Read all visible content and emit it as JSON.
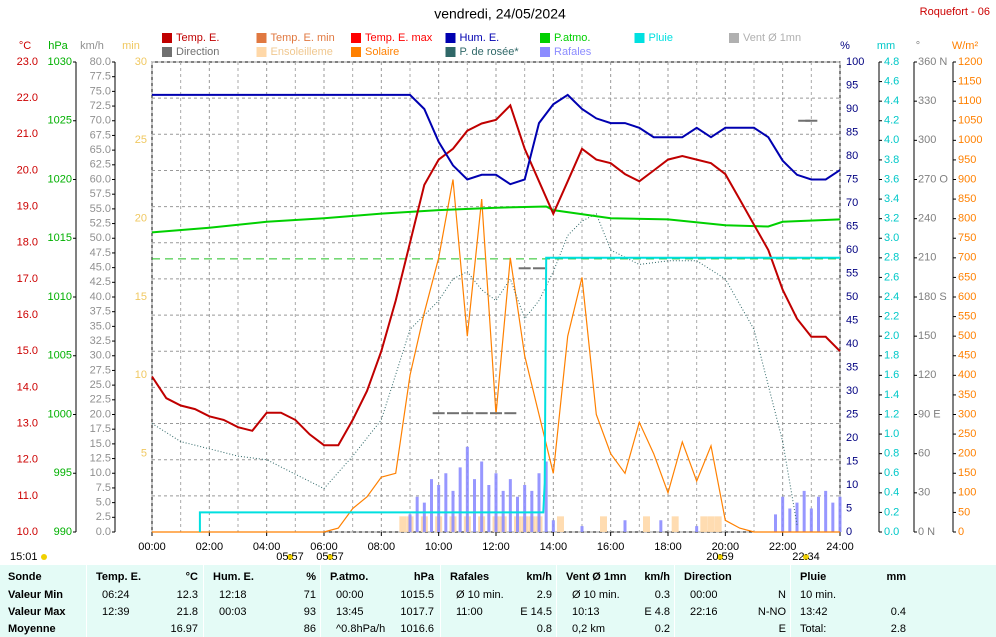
{
  "chart_data": {
    "type": "line",
    "title": "vendredi, 24/05/2024",
    "station": "Roquefort - 06",
    "xlim": [
      0,
      24
    ],
    "xticks": [
      {
        "value": 0,
        "label": "00:00"
      },
      {
        "value": 2,
        "label": "02:00"
      },
      {
        "value": 4,
        "label": "04:00"
      },
      {
        "value": 6,
        "label": "06:00"
      },
      {
        "value": 8,
        "label": "08:00"
      },
      {
        "value": 10,
        "label": "10:00"
      },
      {
        "value": 12,
        "label": "12:00"
      },
      {
        "value": 14,
        "label": "14:00"
      },
      {
        "value": 16,
        "label": "16:00"
      },
      {
        "value": 18,
        "label": "18:00"
      },
      {
        "value": 20,
        "label": "20:00"
      },
      {
        "value": 22,
        "label": "22:00"
      },
      {
        "value": 24,
        "label": "24:00"
      }
    ],
    "xminor": [
      1,
      3,
      5,
      7,
      9,
      11,
      13,
      15,
      17,
      19,
      21,
      23
    ],
    "grid": true,
    "pressure_reference": 1013.25,
    "legend": [
      {
        "name": "Temp. E.",
        "color": "#c00000"
      },
      {
        "name": "Temp. E. min",
        "color": "#e07840"
      },
      {
        "name": "Temp. E. max",
        "color": "#ff0000"
      },
      {
        "name": "Hum. E.",
        "color": "#0000b0"
      },
      {
        "name": "P.atmo.",
        "color": "#00d000"
      },
      {
        "name": "Pluie",
        "color": "#00e0e0"
      },
      {
        "name": "Vent Ø 1mn",
        "color": "#b0b0b0"
      },
      {
        "name": "Direction",
        "color": "#707070"
      },
      {
        "name": "Ensoleilleme",
        "color": "#ffd8a8"
      },
      {
        "name": "Solaire",
        "color": "#ff8000"
      },
      {
        "name": "P. de rosée*",
        "color": "#306868"
      },
      {
        "name": "Rafales",
        "color": "#8c8cff"
      }
    ],
    "axes": {
      "temp": {
        "label": "°C",
        "color": "#cc0000",
        "lim": [
          10,
          23
        ],
        "ticks": [
          {
            "value": 10,
            "label": "10.0"
          },
          {
            "value": 11,
            "label": "11.0"
          },
          {
            "value": 12,
            "label": "12.0"
          },
          {
            "value": 13,
            "label": "13.0"
          },
          {
            "value": 14,
            "label": "14.0"
          },
          {
            "value": 15,
            "label": "15.0"
          },
          {
            "value": 16,
            "label": "16.0"
          },
          {
            "value": 17,
            "label": "17.0"
          },
          {
            "value": 18,
            "label": "18.0"
          },
          {
            "value": 19,
            "label": "19.0"
          },
          {
            "value": 20,
            "label": "20.0"
          },
          {
            "value": 21,
            "label": "21.0"
          },
          {
            "value": 22,
            "label": "22.0"
          },
          {
            "value": 23,
            "label": "23.0"
          }
        ]
      },
      "hpa": {
        "label": "hPa",
        "color": "#00b000",
        "lim": [
          990,
          1030
        ],
        "ticks": [
          990,
          995,
          1000,
          1005,
          1010,
          1015,
          1020,
          1025,
          1030
        ]
      },
      "kmh": {
        "label": "km/h",
        "color": "#909090",
        "lim": [
          0,
          80
        ],
        "ticks": [
          {
            "value": 0,
            "label": "0.0"
          },
          2.5,
          {
            "value": 5,
            "label": "5.0"
          },
          7.5,
          {
            "value": 10,
            "label": "10.0"
          },
          12.5,
          {
            "value": 15,
            "label": "15.0"
          },
          17.5,
          {
            "value": 20,
            "label": "20.0"
          },
          22.5,
          {
            "value": 25,
            "label": "25.0"
          },
          27.5,
          {
            "value": 30,
            "label": "30.0"
          },
          32.5,
          {
            "value": 35,
            "label": "35.0"
          },
          37.5,
          {
            "value": 40,
            "label": "40.0"
          },
          42.5,
          {
            "value": 45,
            "label": "45.0"
          },
          47.5,
          {
            "value": 50,
            "label": "50.0"
          },
          52.5,
          {
            "value": 55,
            "label": "55.0"
          },
          57.5,
          {
            "value": 60,
            "label": "60.0"
          },
          62.5,
          {
            "value": 65,
            "label": "65.0"
          },
          67.5,
          {
            "value": 70,
            "label": "70.0"
          },
          72.5,
          {
            "value": 75,
            "label": "75.0"
          },
          77.5,
          {
            "value": 80,
            "label": "80.0"
          }
        ]
      },
      "min": {
        "label": "min",
        "color": "#f0c860",
        "lim": [
          0,
          30
        ],
        "ticks": [
          5,
          10,
          15,
          20,
          25,
          30
        ]
      },
      "pct": {
        "label": "%",
        "color": "#000080",
        "lim": [
          0,
          100
        ],
        "ticks": [
          0,
          5,
          10,
          15,
          20,
          25,
          30,
          35,
          40,
          45,
          50,
          55,
          60,
          65,
          70,
          75,
          80,
          85,
          90,
          95,
          100
        ]
      },
      "mm": {
        "label": "mm",
        "color": "#00c8c8",
        "lim": [
          0,
          4.8
        ],
        "ticks": [
          {
            "value": 0,
            "label": "0.0"
          },
          0.2,
          0.4,
          0.6,
          0.8,
          {
            "value": 1,
            "label": "1.0"
          },
          1.2,
          1.4,
          1.6,
          1.8,
          {
            "value": 2,
            "label": "2.0"
          },
          2.2,
          2.4,
          2.6,
          2.8,
          {
            "value": 3,
            "label": "3.0"
          },
          3.2,
          3.4,
          3.6,
          3.8,
          {
            "value": 4,
            "label": "4.0"
          },
          4.2,
          4.4,
          4.6,
          4.8
        ]
      },
      "deg": {
        "label": "°",
        "color": "#808080",
        "lim": [
          0,
          360
        ],
        "ticks": [
          {
            "value": 0,
            "label": "0   N"
          },
          30,
          60,
          {
            "value": 90,
            "label": "90  E"
          },
          120,
          150,
          {
            "value": 180,
            "label": "180 S"
          },
          210,
          240,
          {
            "value": 270,
            "label": "270 O"
          },
          300,
          330,
          {
            "value": 360,
            "label": "360 N"
          }
        ]
      },
      "wm2": {
        "label": "W/m²",
        "color": "#ff8000",
        "lim": [
          0,
          1200
        ],
        "ticks": [
          0,
          50,
          100,
          150,
          200,
          250,
          300,
          350,
          400,
          450,
          500,
          550,
          600,
          650,
          700,
          750,
          800,
          850,
          900,
          950,
          1000,
          1050,
          1100,
          1150,
          1200
        ]
      }
    },
    "series": [
      {
        "legend": 8,
        "axis": "min",
        "style": "bars",
        "x": [
          8.75,
          9,
          9.5,
          10,
          10.5,
          11,
          11.5,
          12,
          12.25,
          12.75,
          13,
          13.25,
          13.5,
          14.25,
          15.75,
          17.25,
          18.25,
          19.25,
          19.5,
          19.75
        ],
        "values": [
          1,
          1,
          1,
          1,
          1,
          1,
          1,
          1,
          1,
          1,
          1,
          1,
          1,
          1,
          1,
          1,
          1,
          1,
          1,
          1
        ]
      },
      {
        "legend": 11,
        "axis": "kmh",
        "style": "bars",
        "x": [
          9,
          9.25,
          9.5,
          9.75,
          10,
          10.25,
          10.5,
          10.75,
          11,
          11.25,
          11.5,
          11.75,
          12,
          12.25,
          12.5,
          12.75,
          13,
          13.25,
          13.5,
          13.75,
          14,
          15,
          16.5,
          17.75,
          19,
          21.75,
          22,
          22.25,
          22.5,
          22.75,
          23,
          23.25,
          23.5,
          23.75,
          24
        ],
        "values": [
          3,
          6,
          5,
          9,
          8,
          10,
          7,
          11,
          14.5,
          9,
          12,
          8,
          10,
          7,
          9,
          6,
          8,
          7,
          10,
          12,
          2,
          1,
          2,
          2,
          1,
          3,
          6,
          4,
          5,
          7,
          4,
          6,
          7,
          5,
          6
        ]
      },
      {
        "legend": 9,
        "axis": "wm2",
        "style": "line",
        "x": [
          0,
          1,
          2,
          3,
          4,
          5,
          6,
          6.5,
          7,
          7.5,
          8,
          8.5,
          9,
          9.5,
          10,
          10.5,
          11,
          11.5,
          12,
          12.5,
          13,
          13.5,
          14,
          14.5,
          15,
          15.5,
          16,
          16.5,
          17,
          17.5,
          18,
          18.5,
          19,
          19.5,
          20,
          20.5,
          21,
          22,
          23,
          24
        ],
        "values": [
          0,
          0,
          0,
          0,
          0,
          0,
          0,
          10,
          60,
          90,
          140,
          150,
          400,
          560,
          700,
          900,
          500,
          850,
          300,
          700,
          450,
          300,
          150,
          500,
          650,
          300,
          200,
          150,
          280,
          200,
          100,
          230,
          130,
          220,
          30,
          10,
          0,
          0,
          0,
          0
        ]
      },
      {
        "legend": 10,
        "axis": "temp",
        "style": "dotted",
        "x": [
          0,
          1,
          2,
          3,
          4,
          5,
          6,
          7,
          8,
          9,
          10,
          10.5,
          11,
          11.5,
          12,
          12.5,
          13,
          13.5,
          14,
          14.5,
          15,
          15.5,
          16,
          17,
          18,
          19,
          20,
          21,
          22,
          22.5,
          23,
          24
        ],
        "values": [
          13.0,
          12.5,
          12.3,
          12.1,
          12.0,
          11.6,
          11.2,
          12.1,
          13.1,
          15.6,
          16.4,
          17.0,
          17.2,
          16.7,
          16.4,
          17.0,
          15.9,
          16.4,
          17.2,
          18.2,
          18.6,
          18.8,
          17.8,
          17.4,
          17.5,
          17.5,
          17.0,
          15.6,
          12.5,
          10.2,
          null,
          null
        ]
      },
      {
        "legend": 4,
        "axis": "hpa",
        "style": "line",
        "x": [
          0,
          2,
          4,
          6,
          8,
          10,
          12,
          13.75,
          14,
          16,
          18,
          20,
          21.5,
          22,
          24
        ],
        "values": [
          1015.5,
          1015.9,
          1016.4,
          1016.7,
          1017.1,
          1017.4,
          1017.6,
          1017.7,
          1017.4,
          1016.7,
          1016.6,
          1016.1,
          1016.0,
          1016.4,
          1016.6
        ]
      },
      {
        "legend": 0,
        "axis": "temp",
        "style": "line",
        "x": [
          0,
          0.5,
          1,
          1.5,
          2,
          2.5,
          3,
          3.5,
          4,
          4.5,
          5,
          5.5,
          6,
          6.5,
          7,
          7.5,
          8,
          8.5,
          9,
          9.5,
          10,
          10.5,
          11,
          11.5,
          12,
          12.5,
          13,
          13.5,
          14,
          14.5,
          15,
          15.5,
          16,
          16.5,
          17,
          17.5,
          18,
          18.5,
          19,
          19.5,
          20,
          20.5,
          21,
          21.5,
          22,
          22.5,
          23,
          23.5,
          24
        ],
        "values": [
          14.3,
          13.7,
          13.5,
          13.4,
          13.2,
          13.1,
          12.9,
          12.8,
          13.3,
          13.3,
          13.1,
          12.7,
          12.4,
          12.4,
          13.1,
          13.9,
          15.0,
          16.4,
          18.0,
          19.6,
          20.3,
          20.6,
          21.1,
          21.3,
          21.4,
          21.8,
          20.6,
          19.7,
          18.8,
          19.7,
          20.6,
          20.3,
          20.2,
          19.9,
          19.7,
          20.0,
          20.3,
          20.4,
          20.3,
          20.2,
          19.9,
          19.2,
          18.5,
          17.8,
          16.7,
          15.9,
          15.4,
          15.4,
          15.0
        ]
      },
      {
        "legend": 3,
        "axis": "pct",
        "style": "line",
        "x": [
          0,
          1,
          2,
          3,
          4,
          5,
          6,
          7,
          8,
          9,
          9.5,
          10,
          10.5,
          11,
          11.5,
          12,
          12.5,
          13,
          13.5,
          14,
          14.5,
          15,
          15.5,
          16,
          16.5,
          17,
          17.5,
          18,
          18.5,
          19,
          19.5,
          20,
          20.5,
          21,
          21.5,
          22,
          22.5,
          23,
          23.5,
          24
        ],
        "values": [
          93,
          93,
          93,
          93,
          93,
          93,
          93,
          93,
          93,
          93,
          90,
          83,
          78,
          75,
          76,
          76,
          74,
          75,
          87,
          91,
          93,
          90,
          88,
          87,
          87,
          86,
          84,
          84,
          84,
          86,
          84,
          86,
          86,
          86,
          84,
          79,
          76,
          75,
          75,
          77
        ]
      },
      {
        "legend": 5,
        "axis": "mm",
        "style": "line",
        "x": [
          1.67,
          1.67,
          13.65,
          13.7,
          13.75,
          24
        ],
        "values": [
          0,
          0.2,
          0.2,
          0.5,
          2.8,
          2.8
        ]
      },
      {
        "legend": 7,
        "axis": "deg",
        "style": "dash",
        "x": [
          10,
          10.5,
          11,
          11.5,
          12,
          12.5,
          13,
          13.5,
          22.75,
          23
        ],
        "values": [
          91,
          91,
          91,
          91,
          91,
          91,
          202,
          202,
          315,
          315
        ]
      }
    ],
    "footer_times": [
      "15:01",
      "05:57",
      "05:57",
      "20:59",
      "22:34"
    ]
  },
  "table": {
    "groups": [
      {
        "name": "Sonde"
      },
      {
        "name": "Temp. E.",
        "unit": "°C"
      },
      {
        "name": "Hum. E.",
        "unit": "%"
      },
      {
        "name": "P.atmo.",
        "unit": "hPa"
      },
      {
        "name": "Rafales",
        "unit": "km/h"
      },
      {
        "name": "Vent Ø 1mn",
        "unit": "km/h"
      },
      {
        "name": "Direction"
      },
      {
        "name": "Pluie",
        "unit": "mm"
      }
    ],
    "rows": [
      {
        "label": "Valeur Min",
        "cells": [
          {
            "l": "06:24",
            "r": "12.3"
          },
          {
            "l": "12:18",
            "r": "71"
          },
          {
            "l": "00:00",
            "r": "1015.5"
          },
          {
            "l": "Ø 10 min.",
            "r": "2.9"
          },
          {
            "l": "Ø 10 min.",
            "r": "0.3"
          },
          {
            "l": "00:00",
            "r": "N"
          },
          {
            "l": "10 min."
          }
        ]
      },
      {
        "label": "Valeur Max",
        "cells": [
          {
            "l": "12:39",
            "r": "21.8"
          },
          {
            "l": "00:03",
            "r": "93"
          },
          {
            "l": "13:45",
            "r": "1017.7"
          },
          {
            "l": "11:00",
            "r": "E 14.5"
          },
          {
            "l": "10:13",
            "r": "E 4.8"
          },
          {
            "l": "22:16",
            "r": "N-NO"
          },
          {
            "l": "13:42",
            "r": "0.4"
          }
        ]
      },
      {
        "label": "Moyenne",
        "cells": [
          {
            "r": "16.97"
          },
          {
            "r": "86"
          },
          {
            "l": "^0.8hPa/h",
            "r": "1016.6"
          },
          {
            "r": "0.8"
          },
          {
            "l": "0,2 km",
            "r": "0.2"
          },
          {
            "r": "E"
          },
          {
            "l": "Total:",
            "r": "2.8"
          }
        ]
      }
    ]
  }
}
